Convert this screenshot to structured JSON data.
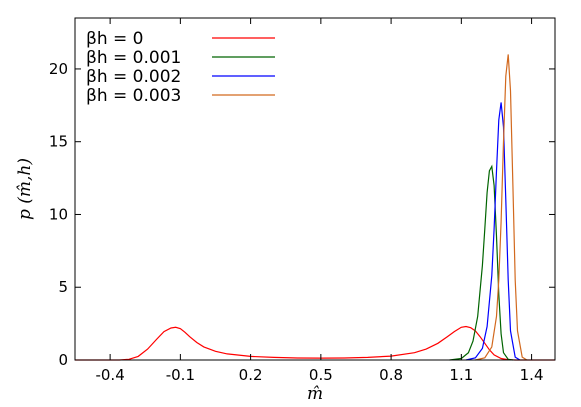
{
  "chart_data": {
    "type": "line",
    "xlabel": "m̂",
    "ylabel": "p (m̂,h)",
    "xlim": [
      -0.55,
      1.5
    ],
    "ylim": [
      0,
      23.5
    ],
    "xticks": [
      -0.4,
      -0.1,
      0.2,
      0.5,
      0.8,
      1.1,
      1.4
    ],
    "xtick_labels": [
      "-0.4",
      "-0.1",
      "0.2",
      "0.5",
      "0.8",
      "1.1",
      "1.4"
    ],
    "yticks": [
      0,
      5,
      10,
      15,
      20
    ],
    "ytick_labels": [
      "0",
      "5",
      "10",
      "15",
      "20"
    ],
    "grid": false,
    "legend_position": "top-left",
    "series": [
      {
        "name": "βh = 0",
        "color": "#ff0000",
        "x": [
          -0.55,
          -0.36,
          -0.32,
          -0.28,
          -0.24,
          -0.2,
          -0.17,
          -0.14,
          -0.12,
          -0.1,
          -0.08,
          -0.06,
          -0.03,
          0.0,
          0.05,
          0.1,
          0.2,
          0.3,
          0.4,
          0.5,
          0.6,
          0.7,
          0.8,
          0.9,
          0.95,
          1.0,
          1.04,
          1.07,
          1.1,
          1.12,
          1.14,
          1.16,
          1.18,
          1.2,
          1.22,
          1.24,
          1.27,
          1.3,
          1.33,
          1.5
        ],
        "y": [
          0,
          0,
          0.05,
          0.25,
          0.75,
          1.45,
          1.95,
          2.2,
          2.25,
          2.15,
          1.9,
          1.6,
          1.2,
          0.9,
          0.6,
          0.42,
          0.25,
          0.18,
          0.14,
          0.13,
          0.14,
          0.18,
          0.27,
          0.5,
          0.75,
          1.15,
          1.6,
          1.95,
          2.25,
          2.3,
          2.22,
          2.0,
          1.6,
          1.15,
          0.7,
          0.35,
          0.1,
          0.02,
          0,
          0
        ]
      },
      {
        "name": "βh = 0.001",
        "color": "#006400",
        "x": [
          1.05,
          1.1,
          1.13,
          1.15,
          1.17,
          1.19,
          1.2,
          1.21,
          1.22,
          1.23,
          1.24,
          1.25,
          1.26,
          1.27,
          1.28,
          1.3,
          1.32
        ],
        "y": [
          0,
          0.1,
          0.5,
          1.3,
          3.0,
          6.5,
          9.0,
          11.5,
          13.0,
          13.3,
          12.0,
          8.5,
          4.5,
          1.8,
          0.5,
          0.05,
          0
        ]
      },
      {
        "name": "βh = 0.002",
        "color": "#0000ff",
        "x": [
          1.12,
          1.16,
          1.19,
          1.21,
          1.23,
          1.24,
          1.25,
          1.26,
          1.27,
          1.28,
          1.29,
          1.3,
          1.31,
          1.33,
          1.35
        ],
        "y": [
          0,
          0.15,
          0.8,
          2.3,
          5.8,
          9.0,
          13.0,
          16.5,
          17.7,
          16.0,
          11.0,
          5.5,
          2.0,
          0.2,
          0
        ]
      },
      {
        "name": "βh = 0.003",
        "color": "#d2691e",
        "x": [
          1.16,
          1.2,
          1.23,
          1.25,
          1.26,
          1.27,
          1.28,
          1.29,
          1.3,
          1.31,
          1.32,
          1.33,
          1.34,
          1.36,
          1.38
        ],
        "y": [
          0,
          0.15,
          0.9,
          3.0,
          5.5,
          9.5,
          15.0,
          19.5,
          21.0,
          18.5,
          12.0,
          5.5,
          2.0,
          0.2,
          0
        ]
      }
    ]
  }
}
